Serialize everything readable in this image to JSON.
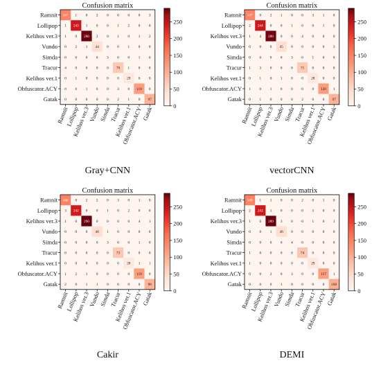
{
  "chart_data": [
    {
      "type": "heatmap",
      "title": "Confusion matrix",
      "caption": "Gray+CNN",
      "row_labels": [
        "Ramnit",
        "Lollipop",
        "Kelihos ver.3",
        "Vundo",
        "Simda",
        "Tracur",
        "Kelihos ver.1",
        "Obfuscator.ACY",
        "Gatak"
      ],
      "col_labels": [
        "Ramnit",
        "Lollipop",
        "Kelihos ver.3",
        "Vundo",
        "Simda",
        "Tracur",
        "Kelihos ver.1",
        "Obfuscator.ACY",
        "Gatak"
      ],
      "values": [
        [
          147,
          1,
          0,
          2,
          0,
          0,
          0,
          0,
          3
        ],
        [
          1,
          243,
          1,
          0,
          0,
          1,
          2,
          0,
          0
        ],
        [
          1,
          0,
          288,
          2,
          0,
          1,
          0,
          1,
          2
        ],
        [
          0,
          2,
          1,
          44,
          0,
          0,
          1,
          0,
          0
        ],
        [
          0,
          0,
          0,
          0,
          3,
          0,
          0,
          1,
          0
        ],
        [
          4,
          0,
          0,
          0,
          0,
          70,
          1,
          0,
          0
        ],
        [
          0,
          1,
          0,
          0,
          0,
          0,
          29,
          0,
          0
        ],
        [
          0,
          0,
          1,
          0,
          0,
          3,
          0,
          119,
          0
        ],
        [
          0,
          0,
          0,
          0,
          0,
          2,
          1,
          0,
          97
        ]
      ],
      "colorbar_ticks": [
        0,
        50,
        100,
        150,
        200,
        250
      ],
      "vmin": 0,
      "vmax": 290
    },
    {
      "type": "heatmap",
      "title": "Confusion matrix",
      "caption": "vectorCNN",
      "row_labels": [
        "Ramnit",
        "Lollipop",
        "Kelihos ver.3",
        "Vundo",
        "Simda",
        "Tracur",
        "Kelihos ver.1",
        "Obfuscator.ACY",
        "Gatak"
      ],
      "col_labels": [
        "Ramnit",
        "Lollipop",
        "Kelihos ver.3",
        "Vundo",
        "Simda",
        "Tracur",
        "Kelihos ver.1",
        "Obfuscator.ACY",
        "Gatak"
      ],
      "values": [
        [
          147,
          0,
          2,
          1,
          0,
          0,
          3,
          1,
          0
        ],
        [
          2,
          244,
          0,
          0,
          1,
          0,
          0,
          1,
          0
        ],
        [
          1,
          4,
          286,
          0,
          0,
          4,
          0,
          0,
          0
        ],
        [
          0,
          0,
          0,
          45,
          0,
          0,
          0,
          0,
          3
        ],
        [
          0,
          0,
          0,
          0,
          3,
          0,
          1,
          0,
          0
        ],
        [
          1,
          3,
          0,
          0,
          0,
          71,
          0,
          0,
          0
        ],
        [
          0,
          1,
          0,
          1,
          0,
          0,
          28,
          0,
          0
        ],
        [
          1,
          0,
          1,
          0,
          0,
          0,
          0,
          120,
          1
        ],
        [
          0,
          1,
          0,
          0,
          0,
          2,
          0,
          0,
          97
        ]
      ],
      "colorbar_ticks": [
        0,
        50,
        100,
        150,
        200,
        250
      ],
      "vmin": 0,
      "vmax": 290
    },
    {
      "type": "heatmap",
      "title": "Confusion matrix",
      "caption": "Cakir",
      "row_labels": [
        "Ramnit",
        "Lollipop",
        "Kelihos ver.3",
        "Vundo",
        "Simda",
        "Tracur",
        "Kelihos ver.1",
        "Obfuscator.ACY",
        "Gatak"
      ],
      "col_labels": [
        "Ramnit",
        "Lollipop",
        "Kelihos ver.3",
        "Vundo",
        "Simda",
        "Tracur",
        "Kelihos ver.1",
        "Obfuscator.ACY",
        "Gatak"
      ],
      "values": [
        [
          146,
          0,
          2,
          2,
          0,
          3,
          0,
          1,
          0
        ],
        [
          3,
          242,
          0,
          0,
          1,
          0,
          2,
          0,
          0
        ],
        [
          1,
          0,
          290,
          0,
          0,
          0,
          0,
          4,
          1
        ],
        [
          0,
          0,
          0,
          46,
          1,
          0,
          0,
          0,
          0
        ],
        [
          0,
          0,
          0,
          0,
          3,
          0,
          0,
          1,
          0
        ],
        [
          0,
          0,
          0,
          0,
          0,
          73,
          0,
          0,
          0
        ],
        [
          0,
          0,
          0,
          0,
          0,
          0,
          28,
          1,
          1
        ],
        [
          1,
          2,
          1,
          0,
          0,
          0,
          0,
          119,
          0
        ],
        [
          2,
          0,
          1,
          1,
          0,
          0,
          0,
          0,
          96
        ]
      ],
      "colorbar_ticks": [
        0,
        50,
        100,
        150,
        200,
        250
      ],
      "vmin": 0,
      "vmax": 290
    },
    {
      "type": "heatmap",
      "title": "Confusion matrix",
      "caption": "DEMI",
      "row_labels": [
        "Ramnit",
        "Lollipop",
        "Kelihos ver.3",
        "Vundo",
        "Simda",
        "Tracur",
        "Kelihos ver.1",
        "Obfuscator.ACY",
        "Gatak"
      ],
      "col_labels": [
        "Ramnit",
        "Lollipop",
        "Kelihos ver.3",
        "Vundo",
        "Simda",
        "Tracur",
        "Kelihos ver.1",
        "Obfuscator.ACY",
        "Gatak"
      ],
      "values": [
        [
          148,
          1,
          1,
          0,
          0,
          2,
          0,
          1,
          0
        ],
        [
          2,
          242,
          1,
          0,
          0,
          0,
          3,
          0,
          0
        ],
        [
          1,
          0,
          289,
          3,
          0,
          0,
          1,
          0,
          1
        ],
        [
          0,
          0,
          1,
          46,
          0,
          0,
          0,
          0,
          0
        ],
        [
          0,
          0,
          0,
          0,
          4,
          0,
          0,
          0,
          0
        ],
        [
          1,
          0,
          0,
          0,
          0,
          74,
          0,
          0,
          0
        ],
        [
          1,
          0,
          0,
          0,
          0,
          0,
          29,
          0,
          0
        ],
        [
          0,
          0,
          2,
          0,
          3,
          0,
          0,
          117,
          1
        ],
        [
          0,
          0,
          0,
          1,
          0,
          0,
          0,
          0,
          100
        ]
      ],
      "colorbar_ticks": [
        0,
        50,
        100,
        150,
        200,
        250
      ],
      "vmin": 0,
      "vmax": 290
    }
  ],
  "colors": {
    "low": "#fff5ee",
    "high": "#67000d"
  }
}
